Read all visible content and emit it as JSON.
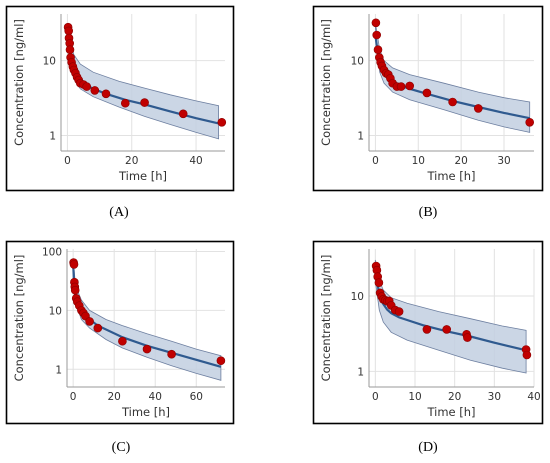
{
  "colors": {
    "band_fill": "#c2cfe0",
    "band_stroke": "#6d7fa0",
    "median_line": "#2f5a8f",
    "point": "#c00000",
    "point_edge": "#8a0000",
    "frame": "#000000",
    "grid": "#e2e2e2"
  },
  "chart_data": [
    {
      "type": "scatter",
      "caption": "(A)",
      "title": "",
      "xlabel": "Time [h]",
      "ylabel": "Concentration [ng/ml]",
      "y_scale": "log",
      "xlim": [
        -2,
        49
      ],
      "ylim": [
        0.62,
        42
      ],
      "xticks": [
        0,
        20,
        40
      ],
      "yticks": [
        1,
        10
      ],
      "grid": true,
      "band_upper": [
        [
          0,
          30
        ],
        [
          1,
          17
        ],
        [
          2,
          12
        ],
        [
          4,
          9
        ],
        [
          8,
          7.0
        ],
        [
          16,
          5.3
        ],
        [
          24,
          4.3
        ],
        [
          32,
          3.5
        ],
        [
          40,
          2.9
        ],
        [
          47,
          2.5
        ]
      ],
      "band_lower": [
        [
          0,
          18
        ],
        [
          1,
          8.5
        ],
        [
          2,
          5.8
        ],
        [
          4,
          4.2
        ],
        [
          8,
          3.3
        ],
        [
          16,
          2.4
        ],
        [
          24,
          1.8
        ],
        [
          32,
          1.4
        ],
        [
          40,
          1.1
        ],
        [
          47,
          0.9
        ]
      ],
      "median": [
        [
          0,
          25
        ],
        [
          0.5,
          15
        ],
        [
          1,
          11
        ],
        [
          2,
          8.0
        ],
        [
          3,
          6.5
        ],
        [
          4,
          5.6
        ],
        [
          6,
          4.7
        ],
        [
          8,
          4.2
        ],
        [
          12,
          3.6
        ],
        [
          18,
          3.0
        ],
        [
          24,
          2.6
        ],
        [
          32,
          2.1
        ],
        [
          40,
          1.7
        ],
        [
          47,
          1.45
        ]
      ],
      "points": [
        [
          0.2,
          28
        ],
        [
          0.4,
          25
        ],
        [
          0.5,
          20
        ],
        [
          0.7,
          17
        ],
        [
          0.8,
          14
        ],
        [
          1.0,
          11
        ],
        [
          1.3,
          9.5
        ],
        [
          1.7,
          8.3
        ],
        [
          2.0,
          7.5
        ],
        [
          2.5,
          6.8
        ],
        [
          3.0,
          6.0
        ],
        [
          3.5,
          5.5
        ],
        [
          4.0,
          5.0
        ],
        [
          5.0,
          4.8
        ],
        [
          6.0,
          4.5
        ],
        [
          8.5,
          4.0
        ],
        [
          12,
          3.6
        ],
        [
          18,
          2.7
        ],
        [
          24,
          2.75
        ],
        [
          36,
          1.95
        ],
        [
          48,
          1.5
        ]
      ]
    },
    {
      "type": "scatter",
      "caption": "(B)",
      "title": "",
      "xlabel": "Time [h]",
      "ylabel": "Concentration [ng/ml]",
      "y_scale": "log",
      "xlim": [
        -1.5,
        37
      ],
      "ylim": [
        0.62,
        42
      ],
      "xticks": [
        0,
        10,
        20,
        30
      ],
      "yticks": [
        1,
        10
      ],
      "grid": true,
      "band_upper": [
        [
          0,
          32
        ],
        [
          1,
          14
        ],
        [
          2,
          10
        ],
        [
          4,
          8.0
        ],
        [
          8,
          6.5
        ],
        [
          16,
          5.0
        ],
        [
          24,
          3.8
        ],
        [
          30,
          3.2
        ],
        [
          36,
          2.8
        ]
      ],
      "band_lower": [
        [
          0,
          20
        ],
        [
          1,
          7.0
        ],
        [
          2,
          5.0
        ],
        [
          4,
          3.8
        ],
        [
          8,
          3.0
        ],
        [
          16,
          2.2
        ],
        [
          24,
          1.6
        ],
        [
          30,
          1.3
        ],
        [
          36,
          1.1
        ]
      ],
      "median": [
        [
          0,
          22
        ],
        [
          0.5,
          13
        ],
        [
          1,
          9.5
        ],
        [
          2,
          7.2
        ],
        [
          3,
          6.0
        ],
        [
          4,
          5.3
        ],
        [
          6,
          4.6
        ],
        [
          8,
          4.2
        ],
        [
          12,
          3.6
        ],
        [
          18,
          2.9
        ],
        [
          24,
          2.4
        ],
        [
          30,
          2.0
        ],
        [
          36,
          1.7
        ]
      ],
      "points": [
        [
          0.1,
          32
        ],
        [
          0.3,
          22
        ],
        [
          0.6,
          14
        ],
        [
          0.9,
          11
        ],
        [
          1.2,
          9.5
        ],
        [
          1.5,
          8.5
        ],
        [
          2.0,
          7.5
        ],
        [
          2.5,
          6.8
        ],
        [
          3.0,
          6.5
        ],
        [
          3.5,
          5.8
        ],
        [
          4.0,
          5.0
        ],
        [
          5.0,
          4.5
        ],
        [
          6.0,
          4.5
        ],
        [
          8.0,
          4.6
        ],
        [
          12,
          3.7
        ],
        [
          18,
          2.8
        ],
        [
          24,
          2.3
        ],
        [
          36,
          1.5
        ]
      ]
    },
    {
      "type": "scatter",
      "caption": "(C)",
      "title": "",
      "xlabel": "Time [h]",
      "ylabel": "Concentration [ng/ml]",
      "y_scale": "log",
      "xlim": [
        -3,
        74
      ],
      "ylim": [
        0.5,
        110
      ],
      "xticks": [
        0,
        20,
        40,
        60
      ],
      "yticks": [
        1,
        10,
        100
      ],
      "grid": true,
      "band_upper": [
        [
          0,
          75
        ],
        [
          1,
          30
        ],
        [
          2,
          22
        ],
        [
          4,
          15
        ],
        [
          8,
          10
        ],
        [
          16,
          7.0
        ],
        [
          24,
          5.5
        ],
        [
          36,
          4.0
        ],
        [
          48,
          3.0
        ],
        [
          60,
          2.2
        ],
        [
          72,
          1.7
        ]
      ],
      "band_lower": [
        [
          0,
          45
        ],
        [
          1,
          15
        ],
        [
          2,
          11
        ],
        [
          4,
          7.0
        ],
        [
          8,
          5.0
        ],
        [
          16,
          3.2
        ],
        [
          24,
          2.3
        ],
        [
          36,
          1.6
        ],
        [
          48,
          1.15
        ],
        [
          60,
          0.85
        ],
        [
          72,
          0.65
        ]
      ],
      "median": [
        [
          0,
          60
        ],
        [
          0.5,
          25
        ],
        [
          1,
          18
        ],
        [
          2,
          13
        ],
        [
          4,
          9.5
        ],
        [
          8,
          7.0
        ],
        [
          12,
          5.5
        ],
        [
          24,
          3.5
        ],
        [
          36,
          2.5
        ],
        [
          48,
          1.9
        ],
        [
          60,
          1.45
        ],
        [
          72,
          1.1
        ]
      ],
      "points": [
        [
          0.2,
          65
        ],
        [
          0.4,
          60
        ],
        [
          0.6,
          30
        ],
        [
          0.8,
          25
        ],
        [
          1.0,
          22
        ],
        [
          1.5,
          16
        ],
        [
          2.0,
          14
        ],
        [
          3.0,
          12
        ],
        [
          4.0,
          10
        ],
        [
          5.0,
          9.0
        ],
        [
          6.0,
          8.0
        ],
        [
          8.0,
          6.5
        ],
        [
          12,
          5.0
        ],
        [
          24,
          3.0
        ],
        [
          36,
          2.2
        ],
        [
          48,
          1.8
        ],
        [
          72,
          1.4
        ]
      ]
    },
    {
      "type": "scatter",
      "caption": "(D)",
      "title": "",
      "xlabel": "Time [h]",
      "ylabel": "Concentration [ng/ml]",
      "y_scale": "log",
      "xlim": [
        -1.6,
        40
      ],
      "ylim": [
        0.62,
        42
      ],
      "xticks": [
        0,
        10,
        20,
        30,
        40
      ],
      "yticks": [
        1,
        10
      ],
      "grid": true,
      "band_upper": [
        [
          0,
          30
        ],
        [
          1,
          16
        ],
        [
          2,
          12
        ],
        [
          4,
          9.5
        ],
        [
          8,
          8.0
        ],
        [
          16,
          6.2
        ],
        [
          24,
          5.0
        ],
        [
          32,
          4.0
        ],
        [
          38,
          3.5
        ]
      ],
      "band_lower": [
        [
          0,
          16
        ],
        [
          1,
          6.5
        ],
        [
          2,
          4.5
        ],
        [
          4,
          3.3
        ],
        [
          8,
          2.6
        ],
        [
          16,
          1.9
        ],
        [
          24,
          1.4
        ],
        [
          32,
          1.1
        ],
        [
          38,
          0.95
        ]
      ],
      "median": [
        [
          0,
          25
        ],
        [
          0.5,
          15
        ],
        [
          1,
          10.5
        ],
        [
          2,
          7.8
        ],
        [
          3,
          6.6
        ],
        [
          4,
          5.9
        ],
        [
          6,
          5.2
        ],
        [
          8,
          4.8
        ],
        [
          12,
          4.1
        ],
        [
          18,
          3.4
        ],
        [
          24,
          2.9
        ],
        [
          30,
          2.4
        ],
        [
          38,
          1.9
        ]
      ],
      "points": [
        [
          0.2,
          25
        ],
        [
          0.4,
          22
        ],
        [
          0.6,
          18
        ],
        [
          0.9,
          15
        ],
        [
          1.2,
          11
        ],
        [
          1.6,
          9.8
        ],
        [
          2.0,
          9.0
        ],
        [
          2.5,
          8.8
        ],
        [
          3.0,
          8.5
        ],
        [
          3.5,
          8.6
        ],
        [
          4.0,
          7.5
        ],
        [
          5.0,
          6.5
        ],
        [
          6.0,
          6.2
        ],
        [
          13,
          3.6
        ],
        [
          18,
          3.6
        ],
        [
          23,
          3.1
        ],
        [
          23.2,
          2.8
        ],
        [
          38,
          1.95
        ],
        [
          38.2,
          1.65
        ]
      ]
    }
  ]
}
